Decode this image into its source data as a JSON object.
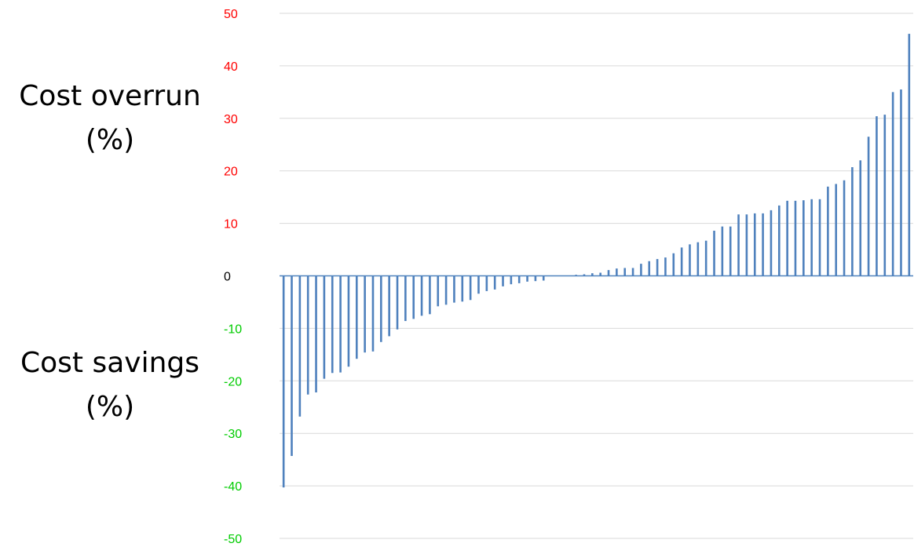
{
  "labels": {
    "overrun_line1": "Cost overrun",
    "overrun_line2": "(%)",
    "savings_line1": "Cost savings",
    "savings_line2": "(%)"
  },
  "colors": {
    "bar": "#4f81bd",
    "positive_tick": "#ff0000",
    "negative_tick": "#00cc00",
    "zero_tick": "#000000",
    "gridline": "#d9d9d9"
  },
  "chart_data": {
    "type": "bar",
    "title": "",
    "xlabel": "",
    "ylabel": "",
    "ylim": [
      -50,
      50
    ],
    "yticks": [
      "50",
      "40",
      "30",
      "20",
      "10",
      "0",
      "-10",
      "-20",
      "-30",
      "-40",
      "-50"
    ],
    "grid": true,
    "legend": "none",
    "values": [
      -40.3,
      -34.3,
      -26.8,
      -22.6,
      -22.2,
      -19.6,
      -18.5,
      -18.4,
      -17.3,
      -15.8,
      -14.6,
      -14.4,
      -12.6,
      -11.5,
      -10.2,
      -8.6,
      -8.2,
      -7.6,
      -7.3,
      -5.8,
      -5.5,
      -5.1,
      -4.9,
      -4.6,
      -3.4,
      -2.9,
      -2.6,
      -2.0,
      -1.6,
      -1.4,
      -1.1,
      -1.0,
      -0.9,
      0.0,
      0.0,
      0.0,
      0.2,
      0.3,
      0.5,
      0.6,
      1.1,
      1.4,
      1.5,
      1.5,
      2.3,
      2.8,
      3.2,
      3.5,
      4.3,
      5.4,
      6.0,
      6.4,
      6.7,
      8.6,
      9.4,
      9.4,
      11.7,
      11.7,
      11.9,
      11.9,
      12.5,
      13.4,
      14.3,
      14.3,
      14.4,
      14.6,
      14.6,
      17.0,
      17.5,
      18.2,
      20.7,
      22.0,
      26.5,
      30.4,
      30.7,
      35.0,
      35.5,
      46.1
    ]
  }
}
